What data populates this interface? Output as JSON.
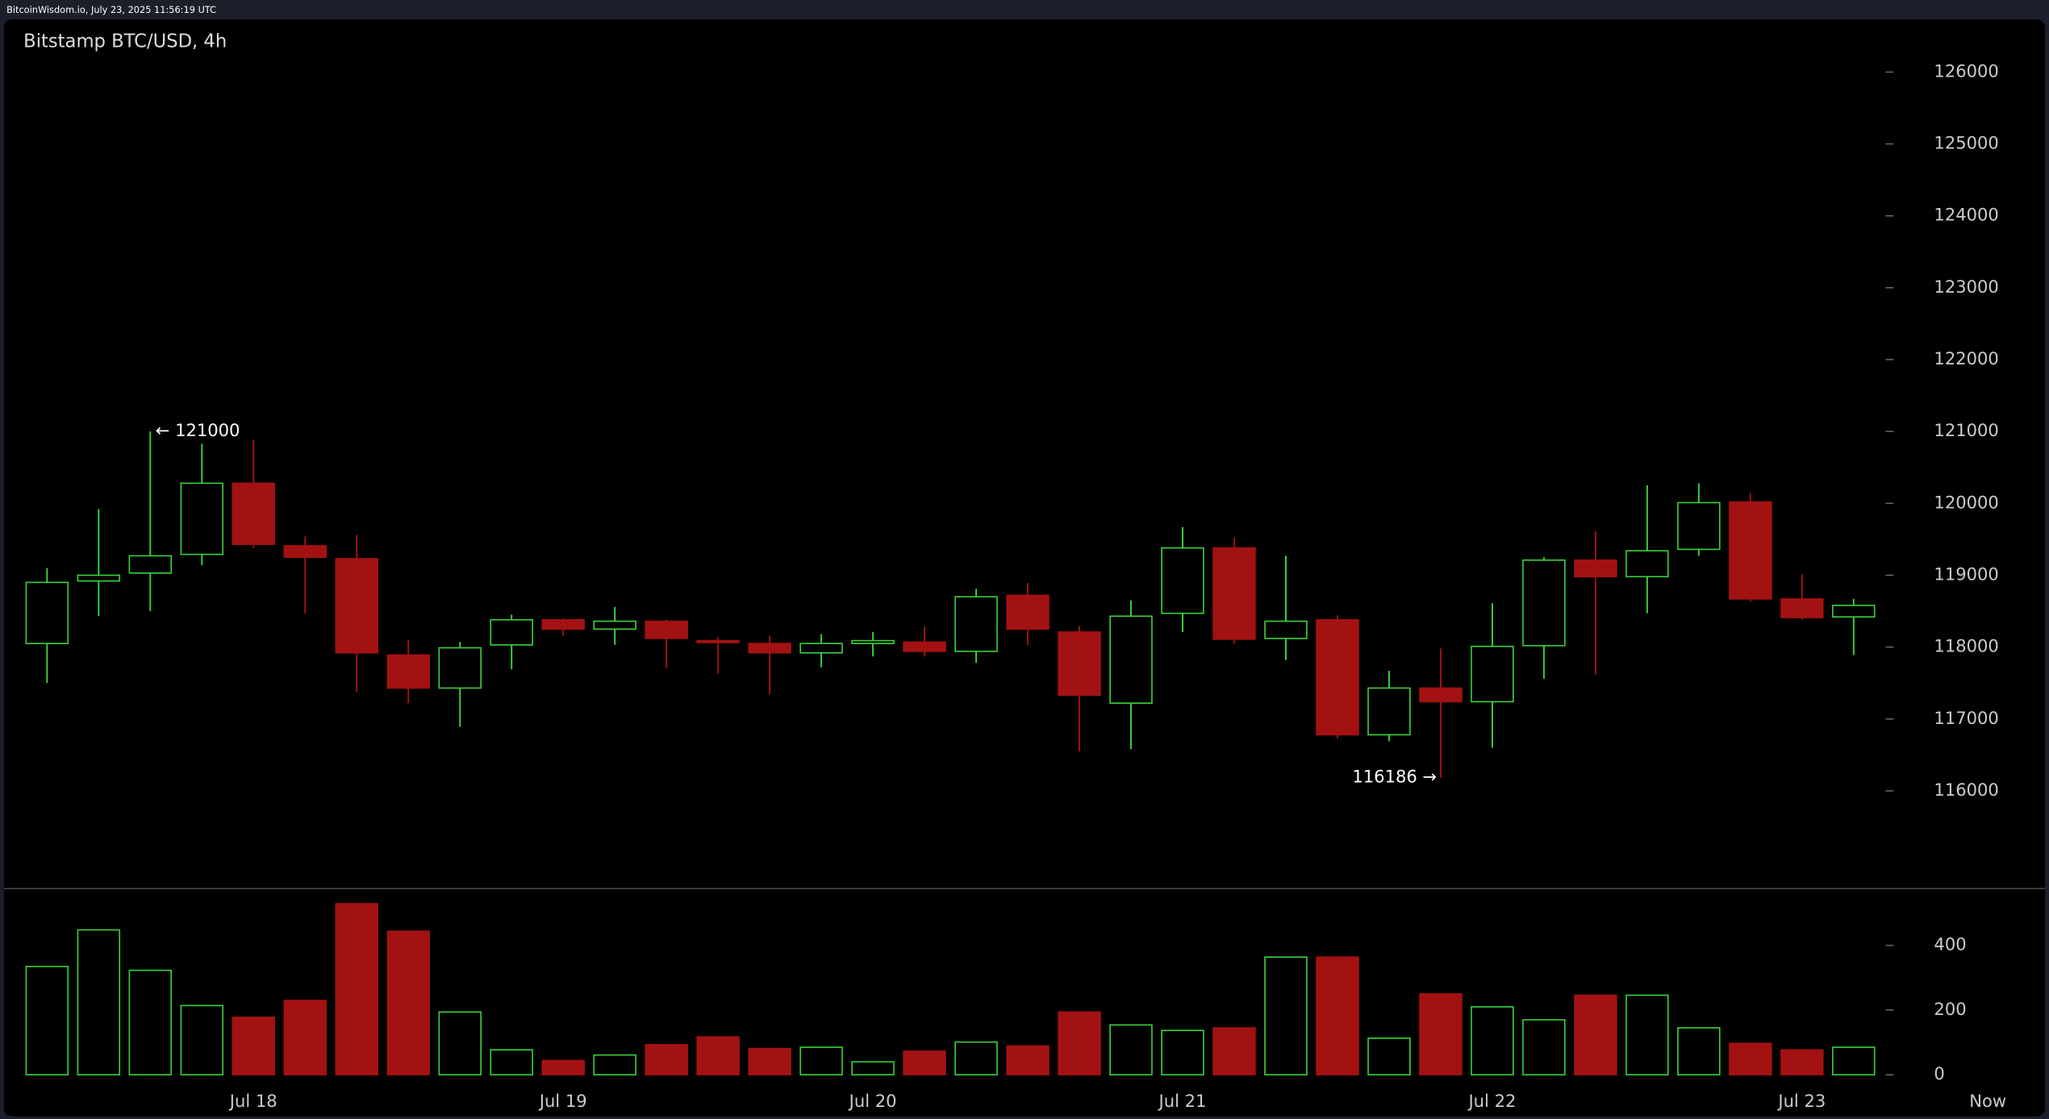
{
  "header": "BitcoinWisdom.io, July 23, 2025 11:56:19 UTC",
  "chart_data": [
    {
      "type": "candlestick",
      "title": "Bitstamp BTC/USD, 4h",
      "categories": [
        null,
        null,
        null,
        null,
        "Jul 18",
        null,
        null,
        null,
        null,
        null,
        "Jul 19",
        null,
        null,
        null,
        null,
        null,
        "Jul 20",
        null,
        null,
        null,
        null,
        null,
        "Jul 21",
        null,
        null,
        null,
        null,
        null,
        "Jul 22",
        null,
        null,
        null,
        null,
        null,
        "Jul 23",
        null
      ],
      "x_end_label": "Now",
      "open": [
        118050,
        118920,
        119030,
        119290,
        120280,
        119410,
        119230,
        117890,
        117430,
        118030,
        118380,
        118250,
        118360,
        118090,
        118050,
        117920,
        118050,
        118070,
        117940,
        118720,
        118210,
        117220,
        118470,
        119380,
        118120,
        118380,
        116780,
        117430,
        117240,
        118020,
        119210,
        118980,
        119360,
        120020,
        118670,
        118420
      ],
      "high": [
        119100,
        119920,
        121000,
        120830,
        120880,
        119540,
        119560,
        118100,
        118070,
        118450,
        118400,
        118560,
        118380,
        118140,
        118160,
        118180,
        118210,
        118290,
        118810,
        118890,
        118290,
        118650,
        119670,
        119520,
        119270,
        118440,
        117670,
        117980,
        118610,
        119250,
        119610,
        120250,
        120280,
        120140,
        119010,
        118670
      ],
      "low": [
        117500,
        118430,
        118500,
        119140,
        119380,
        118470,
        117380,
        117220,
        116890,
        117690,
        118160,
        118030,
        117710,
        117630,
        117340,
        117720,
        117870,
        117870,
        117780,
        118030,
        116550,
        116580,
        118210,
        118050,
        117820,
        116730,
        116690,
        116186,
        116600,
        117560,
        117620,
        118470,
        119270,
        118630,
        118380,
        117890
      ],
      "close": [
        118900,
        119000,
        119270,
        120280,
        119430,
        119250,
        117920,
        117430,
        117990,
        118380,
        118250,
        118360,
        118120,
        118070,
        117920,
        118050,
        118090,
        117940,
        118700,
        118250,
        117330,
        118430,
        119380,
        118110,
        118360,
        116780,
        117430,
        117240,
        118010,
        119210,
        118980,
        119340,
        120010,
        118670,
        118410,
        118580
      ],
      "up_color": "#3ad13a",
      "down_color": "#a31212",
      "annotations": [
        {
          "value": 121000,
          "label": "← 121000"
        },
        {
          "value": 116186,
          "label": "116186 →"
        }
      ],
      "ylim": [
        114650,
        126730
      ],
      "yticks": [
        116000,
        117000,
        118000,
        119000,
        120000,
        121000,
        122000,
        123000,
        124000,
        125000,
        126000
      ]
    },
    {
      "type": "bar",
      "values": [
        335,
        448,
        323,
        214,
        178,
        230,
        529,
        444,
        194,
        77,
        44,
        61,
        93,
        117,
        81,
        85,
        40,
        73,
        101,
        89,
        194,
        154,
        137,
        145,
        364,
        364,
        113,
        250,
        210,
        170,
        246,
        246,
        145,
        97,
        77,
        85
      ],
      "ylim": [
        -40,
        578
      ],
      "yticks": [
        0,
        200,
        400
      ]
    }
  ]
}
